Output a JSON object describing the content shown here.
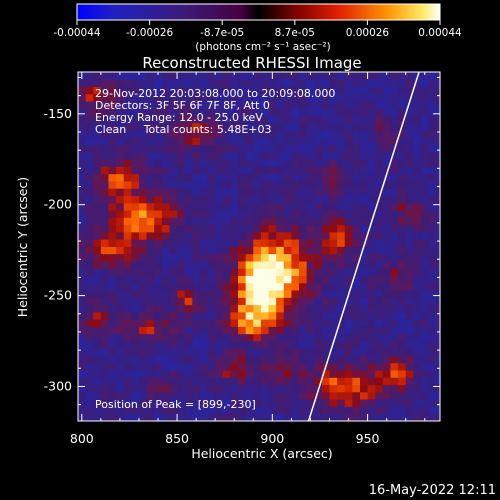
{
  "chart_data": {
    "type": "heatmap",
    "title": "Reconstructed RHESSI Image",
    "xlabel": "Heliocentric X (arcsec)",
    "ylabel": "Heliocentric Y (arcsec)",
    "xlim": [
      798,
      988
    ],
    "ylim": [
      -319,
      -127
    ],
    "x_ticks": [
      800,
      850,
      900,
      950
    ],
    "y_ticks": [
      -150,
      -200,
      -250,
      -300
    ],
    "colorbar": {
      "ticks": [
        "-0.00044",
        "-0.00026",
        "-8.7e-05",
        "8.7e-05",
        "0.00026",
        "0.00044"
      ],
      "unit_label": "(photons cm⁻² s⁻¹ asec⁻²)",
      "range": [
        -0.00044,
        0.00044
      ]
    },
    "annotations": {
      "time_range": "29-Nov-2012 20:03:08.000 to 20:09:08.000",
      "detectors": "Detectors: 3F 5F 6F 7F 8F, Att 0",
      "energy": "Energy Range: 12.0 - 25.0 keV",
      "algorithm": "Clean     Total counts: 5.48E+03",
      "peak": "Position of Peak = [899,-230]"
    },
    "limb_line": [
      [
        919,
        -319
      ],
      [
        977,
        -127
      ]
    ],
    "blobs": [
      {
        "x": 903,
        "y": -235,
        "rx": 18,
        "ry": 22,
        "amp": 1.0
      },
      {
        "x": 892,
        "y": -248,
        "rx": 14,
        "ry": 18,
        "amp": 0.8
      },
      {
        "x": 888,
        "y": -265,
        "rx": 12,
        "ry": 9,
        "amp": 0.65
      },
      {
        "x": 832,
        "y": -207,
        "rx": 18,
        "ry": 12,
        "amp": 0.9
      },
      {
        "x": 820,
        "y": -185,
        "rx": 12,
        "ry": 10,
        "amp": 0.7
      },
      {
        "x": 815,
        "y": -225,
        "rx": 14,
        "ry": 9,
        "amp": 0.65
      },
      {
        "x": 858,
        "y": -160,
        "rx": 14,
        "ry": 10,
        "amp": 0.55
      },
      {
        "x": 855,
        "y": -252,
        "rx": 8,
        "ry": 8,
        "amp": 0.55
      },
      {
        "x": 835,
        "y": -268,
        "rx": 14,
        "ry": 8,
        "amp": 0.5
      },
      {
        "x": 938,
        "y": -300,
        "rx": 18,
        "ry": 12,
        "amp": 0.8
      },
      {
        "x": 965,
        "y": -292,
        "rx": 10,
        "ry": 10,
        "amp": 0.6
      },
      {
        "x": 934,
        "y": -218,
        "rx": 9,
        "ry": 12,
        "amp": 0.65
      },
      {
        "x": 972,
        "y": -205,
        "rx": 7,
        "ry": 9,
        "amp": 0.5
      },
      {
        "x": 880,
        "y": -290,
        "rx": 10,
        "ry": 8,
        "amp": 0.5
      },
      {
        "x": 905,
        "y": -290,
        "rx": 10,
        "ry": 8,
        "amp": 0.45
      },
      {
        "x": 808,
        "y": -262,
        "rx": 7,
        "ry": 10,
        "amp": 0.5
      },
      {
        "x": 808,
        "y": -140,
        "rx": 10,
        "ry": 8,
        "amp": 0.6
      },
      {
        "x": 930,
        "y": -185,
        "rx": 8,
        "ry": 8,
        "amp": 0.35
      },
      {
        "x": 845,
        "y": -300,
        "rx": 10,
        "ry": 6,
        "amp": 0.35
      },
      {
        "x": 960,
        "y": -160,
        "rx": 8,
        "ry": 8,
        "amp": 0.35
      },
      {
        "x": 965,
        "y": -240,
        "rx": 8,
        "ry": 10,
        "amp": 0.35
      }
    ]
  },
  "footer": {
    "date": "16-May-2022 12:11"
  }
}
